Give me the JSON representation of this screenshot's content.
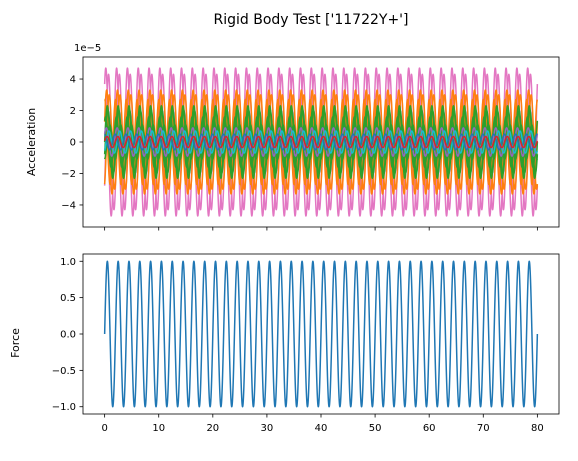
{
  "figure": {
    "title": "Rigid Body Test ['11722Y+']"
  },
  "chart_data": [
    {
      "type": "line",
      "panel": "top",
      "title": "",
      "xlabel": "",
      "ylabel": "Acceleration",
      "offset_text": "1e−5",
      "x_range": [
        0,
        80
      ],
      "xlim": [
        -4,
        84
      ],
      "ylim": [
        -5.4,
        5.4
      ],
      "xticks": [
        0,
        10,
        20,
        30,
        40,
        50,
        60,
        70,
        80
      ],
      "xtick_labels_visible": false,
      "yticks": [
        -4,
        -2,
        0,
        2,
        4
      ],
      "ytick_labels": [
        "−4",
        "−2",
        "0",
        "2",
        "4"
      ],
      "frequency_hz": 0.5,
      "grid": false,
      "legend": "none",
      "series": [
        {
          "amplitude": 4.7,
          "phase": 0.9,
          "color": "#e377c2"
        },
        {
          "amplitude": 4.3,
          "phase": -0.7,
          "color": "#e377c2"
        },
        {
          "amplitude": 3.3,
          "phase": 0.4,
          "color": "#ff7f0e"
        },
        {
          "amplitude": 3.0,
          "phase": -1.1,
          "color": "#ff7f0e"
        },
        {
          "amplitude": 2.7,
          "phase": 1.5,
          "color": "#ff7f0e"
        },
        {
          "amplitude": 2.3,
          "phase": 0.0,
          "color": "#2ca02c"
        },
        {
          "amplitude": 2.0,
          "phase": -0.4,
          "color": "#2ca02c"
        },
        {
          "amplitude": 1.6,
          "phase": 1.0,
          "color": "#2ca02c"
        },
        {
          "amplitude": 1.1,
          "phase": -1.4,
          "color": "#2ca02c"
        },
        {
          "amplitude": 0.9,
          "phase": 0.6,
          "color": "#9467bd"
        },
        {
          "amplitude": 0.7,
          "phase": -0.9,
          "color": "#17becf"
        },
        {
          "amplitude": 0.5,
          "phase": 1.8,
          "color": "#1f77b4"
        },
        {
          "amplitude": 0.35,
          "phase": 0.2,
          "color": "#d62728"
        }
      ]
    },
    {
      "type": "line",
      "panel": "bottom",
      "title": "",
      "xlabel": "",
      "ylabel": "Force",
      "x_range": [
        0,
        80
      ],
      "xlim": [
        -4,
        84
      ],
      "ylim": [
        -1.1,
        1.1
      ],
      "xticks": [
        0,
        10,
        20,
        30,
        40,
        50,
        60,
        70,
        80
      ],
      "xtick_labels": [
        "0",
        "10",
        "20",
        "30",
        "40",
        "50",
        "60",
        "70",
        "80"
      ],
      "yticks": [
        -1.0,
        -0.5,
        0.0,
        0.5,
        1.0
      ],
      "ytick_labels": [
        "−1.0",
        "−0.5",
        "0.0",
        "0.5",
        "1.0"
      ],
      "frequency_hz": 0.5,
      "amplitude": 1.0,
      "grid": false,
      "legend": "none",
      "series": [
        {
          "color": "#1f77b4"
        }
      ]
    }
  ]
}
